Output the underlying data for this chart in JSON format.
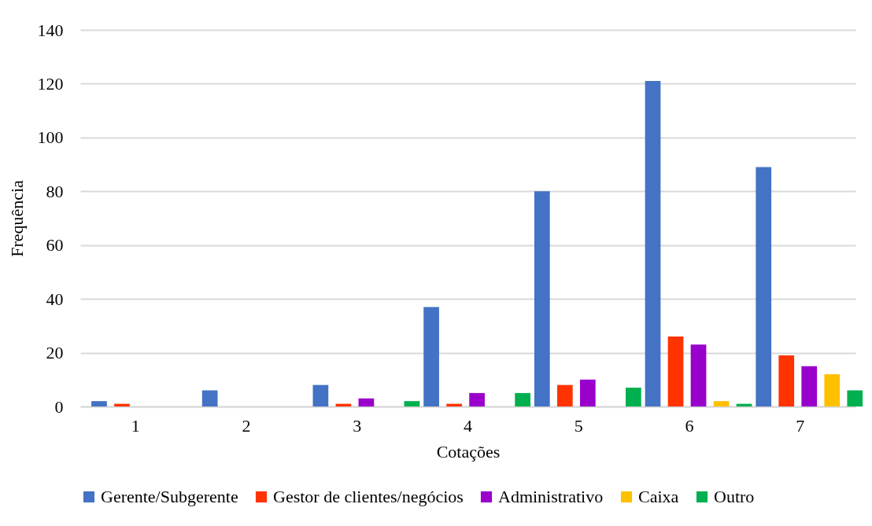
{
  "chart_data": {
    "type": "bar",
    "xlabel": "Cotações",
    "ylabel": "Frequência",
    "categories": [
      "1",
      "2",
      "3",
      "4",
      "5",
      "6",
      "7"
    ],
    "series": [
      {
        "name": "Gerente/Subgerente",
        "color": "#4472c4",
        "values": [
          2,
          6,
          8,
          37,
          80,
          121,
          89
        ]
      },
      {
        "name": "Gestor de clientes/negócios",
        "color": "#ff3300",
        "values": [
          1,
          0,
          1,
          1,
          8,
          26,
          19
        ]
      },
      {
        "name": "Administrativo",
        "color": "#9900cc",
        "values": [
          0,
          0,
          3,
          5,
          10,
          23,
          15
        ]
      },
      {
        "name": "Caixa",
        "color": "#ffc000",
        "values": [
          0,
          0,
          0,
          0,
          0,
          2,
          12
        ]
      },
      {
        "name": "Outro",
        "color": "#00b050",
        "values": [
          0,
          0,
          2,
          5,
          7,
          1,
          6
        ]
      }
    ],
    "ylim": [
      0,
      140
    ],
    "yticks": [
      0,
      20,
      40,
      60,
      80,
      100,
      120,
      140
    ],
    "grid": "y",
    "legend": "bottom"
  }
}
